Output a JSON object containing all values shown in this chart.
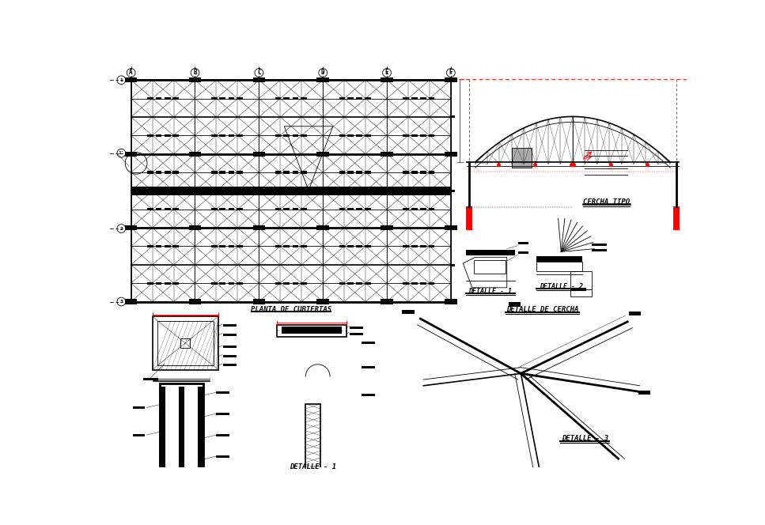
{
  "bg_color": "#ffffff",
  "grid_cols": [
    "A",
    "B",
    "C",
    "D",
    "E",
    "F"
  ],
  "grid_rows": [
    "1",
    "1'",
    "2",
    "3"
  ],
  "label_planta": "PLANTA DE CUBIERTAS",
  "label_cercha": "CERCHA TIPO",
  "label_detalle1_right": "DETALLE - 1",
  "label_detalle2": "DETALLE - 2",
  "label_detalle3": "DETALLE - 3",
  "label_detalle_cercha": "DETALLE DE CERCHA",
  "label_detalle1_bottom": "DETALLE - 1"
}
